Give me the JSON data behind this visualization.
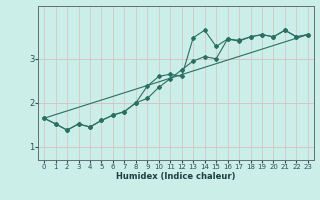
{
  "xlabel": "Humidex (Indice chaleur)",
  "bg_color": "#cceee8",
  "grid_color_v": "#d4c8c8",
  "grid_color_h": "#d4c0c0",
  "line_color": "#2a7060",
  "xlim": [
    -0.5,
    23.5
  ],
  "ylim": [
    0.7,
    4.2
  ],
  "yticks": [
    1,
    2,
    3
  ],
  "xticks": [
    0,
    1,
    2,
    3,
    4,
    5,
    6,
    7,
    8,
    9,
    10,
    11,
    12,
    13,
    14,
    15,
    16,
    17,
    18,
    19,
    20,
    21,
    22,
    23
  ],
  "line1_x": [
    0,
    1,
    2,
    3,
    4,
    5,
    6,
    7,
    8,
    9,
    10,
    11,
    12,
    13,
    14,
    15,
    16,
    17,
    18,
    19,
    20,
    21,
    22,
    23
  ],
  "line1_y": [
    1.65,
    1.52,
    1.38,
    1.52,
    1.45,
    1.6,
    1.72,
    1.8,
    2.0,
    2.1,
    2.35,
    2.55,
    2.75,
    2.95,
    3.05,
    3.0,
    3.45,
    3.42,
    3.5,
    3.55,
    3.5,
    3.65,
    3.5,
    3.55
  ],
  "line2_x": [
    0,
    1,
    2,
    3,
    4,
    5,
    6,
    7,
    8,
    9,
    10,
    11,
    12,
    13,
    14,
    15,
    16,
    17,
    18,
    19,
    20,
    21,
    22,
    23
  ],
  "line2_y": [
    1.65,
    1.52,
    1.38,
    1.52,
    1.45,
    1.6,
    1.72,
    1.8,
    2.0,
    2.38,
    2.6,
    2.65,
    2.6,
    3.48,
    3.65,
    3.28,
    3.45,
    3.4,
    3.5,
    3.55,
    3.5,
    3.65,
    3.5,
    3.55
  ],
  "line3_x": [
    0,
    23
  ],
  "line3_y": [
    1.65,
    3.55
  ]
}
